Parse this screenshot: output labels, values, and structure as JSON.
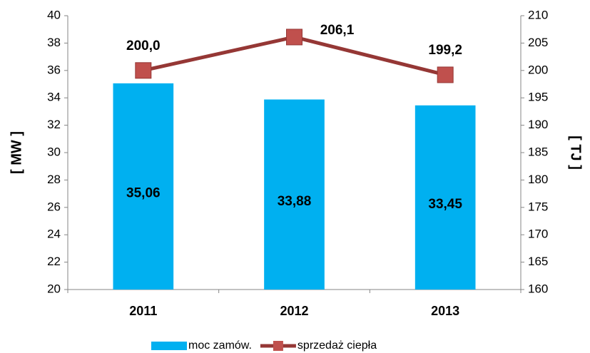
{
  "chart_data": {
    "type": "bar",
    "categories": [
      "2011",
      "2012",
      "2013"
    ],
    "series": [
      {
        "name": "moc zamów.",
        "type": "bar",
        "color": "#00b0f0",
        "values": [
          35.06,
          33.88,
          33.45
        ],
        "value_labels": [
          "35,06",
          "33,88",
          "33,45"
        ]
      },
      {
        "name": "sprzedaż ciepła",
        "type": "line",
        "axis": "y2",
        "color": "#953735",
        "marker_color": "#c0504d",
        "values": [
          200.0,
          206.1,
          199.2
        ],
        "value_labels": [
          "200,0",
          "206,1",
          "199,2"
        ]
      }
    ],
    "ylabel": "[ MW ]",
    "y2label": "[ TJ ]",
    "ylim": [
      20,
      40
    ],
    "yticks": [
      20,
      22,
      24,
      26,
      28,
      30,
      32,
      34,
      36,
      38,
      40
    ],
    "y2lim": [
      160,
      210
    ],
    "y2ticks": [
      160,
      165,
      170,
      175,
      180,
      185,
      190,
      195,
      200,
      205,
      210
    ],
    "grid": false,
    "legend": "bottom"
  }
}
